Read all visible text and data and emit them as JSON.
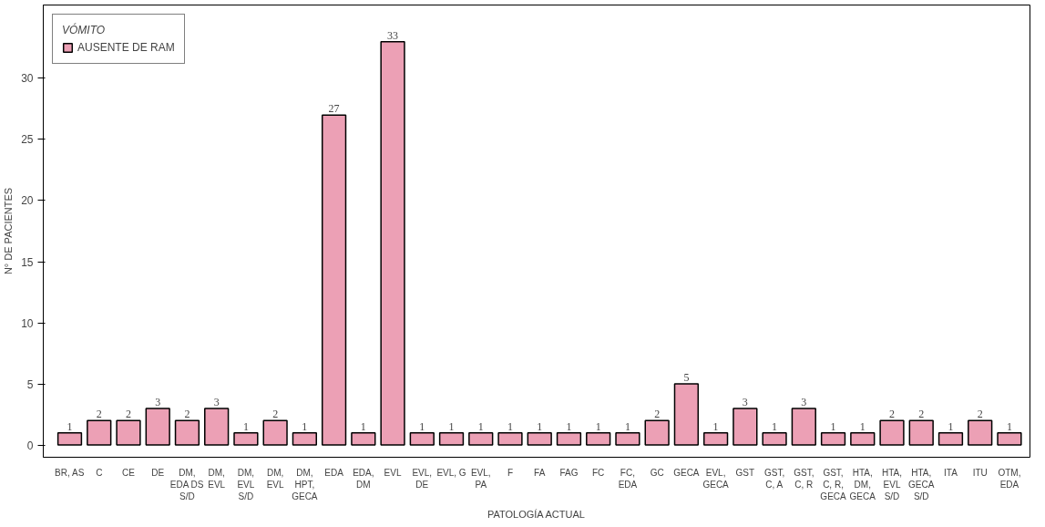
{
  "chart_data": {
    "type": "bar",
    "xlabel": "PATOLOGÍA ACTUAL",
    "ylabel": "N° DE PACIENTES",
    "legend_title": "VÓMITO",
    "categories": [
      "BR, AS",
      "C",
      "CE",
      "DE",
      "DM, EDA DS S/D",
      "DM, EVL",
      "DM, EVL S/D",
      "DM, EVL",
      "DM, HPT, GECA",
      "EDA",
      "EDA, DM",
      "EVL",
      "EVL, DE",
      "EVL, G",
      "EVL, PA",
      "F",
      "FA",
      "FAG",
      "FC",
      "FC, EDA",
      "GC",
      "GECA",
      "EVL, GECA",
      "GST",
      "GST, C, A",
      "GST, C, R",
      "GST, C, R, GECA",
      "HTA, DM, GECA",
      "HTA, EVL S/D",
      "HTA, GECA S/D",
      "ITA",
      "ITU",
      "OTM, EDA"
    ],
    "series": [
      {
        "name": "AUSENTE DE RAM",
        "color": "#eca0b5",
        "values": [
          1,
          2,
          2,
          3,
          2,
          3,
          1,
          2,
          1,
          27,
          1,
          33,
          1,
          1,
          1,
          1,
          1,
          1,
          1,
          1,
          2,
          5,
          1,
          3,
          1,
          3,
          1,
          1,
          2,
          2,
          1,
          2,
          1
        ]
      }
    ],
    "ylim": [
      -1,
      36
    ],
    "yticks": [
      0,
      5,
      10,
      15,
      20,
      25,
      30
    ],
    "data_labels": true,
    "grid": false,
    "legend": "top left"
  }
}
